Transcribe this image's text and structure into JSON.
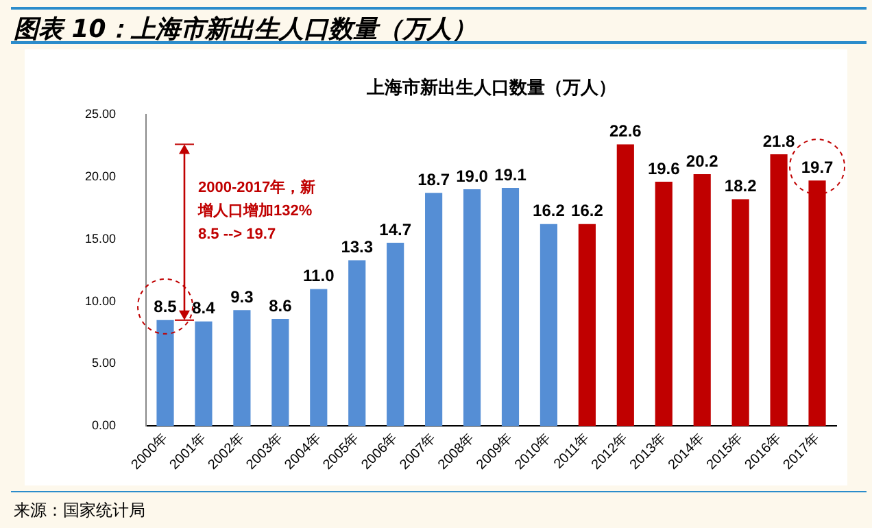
{
  "chart_data": {
    "type": "bar",
    "title": "图表 10：上海市新出生人口数量（万人）",
    "subtitle": "上海市新出生人口数量（万人）",
    "categories": [
      "2000年",
      "2001年",
      "2002年",
      "2003年",
      "2004年",
      "2005年",
      "2006年",
      "2007年",
      "2008年",
      "2009年",
      "2010年",
      "2011年",
      "2012年",
      "2013年",
      "2014年",
      "2015年",
      "2016年",
      "2017年"
    ],
    "values": [
      8.5,
      8.4,
      9.3,
      8.6,
      11.0,
      13.3,
      14.7,
      18.7,
      19.0,
      19.1,
      16.2,
      16.2,
      22.6,
      19.6,
      20.2,
      18.2,
      21.8,
      19.7
    ],
    "colors": [
      "#558ed5",
      "#558ed5",
      "#558ed5",
      "#558ed5",
      "#558ed5",
      "#558ed5",
      "#558ed5",
      "#558ed5",
      "#558ed5",
      "#558ed5",
      "#558ed5",
      "#c00000",
      "#c00000",
      "#c00000",
      "#c00000",
      "#c00000",
      "#c00000",
      "#c00000"
    ],
    "ylim": [
      0,
      25
    ],
    "yticks": [
      {
        "value": 0,
        "label": "0.00"
      },
      {
        "value": 5,
        "label": "5.00"
      },
      {
        "value": 10,
        "label": "10.00"
      },
      {
        "value": 15,
        "label": "15.00"
      },
      {
        "value": 20,
        "label": "20.00"
      },
      {
        "value": 25,
        "label": "25.00"
      }
    ],
    "value_labels": [
      "8.5",
      "8.4",
      "9.3",
      "8.6",
      "11.0",
      "13.3",
      "14.7",
      "18.7",
      "19.0",
      "19.1",
      "16.2",
      "16.2",
      "22.6",
      "19.6",
      "20.2",
      "18.2",
      "21.8",
      "19.7"
    ],
    "grid": false,
    "legend": false,
    "annotations": [
      "2000-2017年，新增人口增加132% 8.5 --> 19.7",
      "来源：国家统计局"
    ]
  }
}
